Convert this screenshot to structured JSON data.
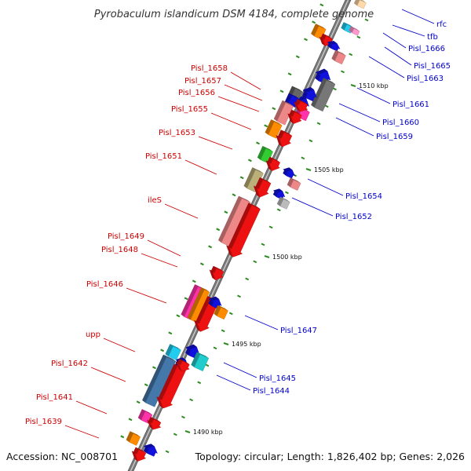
{
  "title": "Pyrobaculum islandicum DSM 4184, complete genome",
  "footer": {
    "accession": "Accession: NC_008701",
    "topology": "Topology: circular; Length: 1,826,402 bp; Genes: 2,026"
  },
  "colors": {
    "red_label": "#cc0000",
    "blue_label": "#0000cc",
    "backbone": "#777777",
    "tick": "#2e8b22"
  },
  "kbp_labels": [
    "1510 kbp",
    "1505 kbp",
    "1500 kbp",
    "1495 kbp",
    "1490 kbp"
  ],
  "labels_left": [
    "Pisl_1658",
    "Pisl_1657",
    "Pisl_1656",
    "Pisl_1655",
    "Pisl_1653",
    "Pisl_1651",
    "ileS",
    "Pisl_1649",
    "Pisl_1648",
    "Pisl_1646",
    "upp",
    "Pisl_1642",
    "Pisl_1641",
    "Pisl_1639"
  ],
  "labels_right": [
    "rfc",
    "tfb",
    "Pisl_1666",
    "Pisl_1665",
    "Pisl_1663",
    "Pisl_1661",
    "Pisl_1660",
    "Pisl_1659",
    "Pisl_1654",
    "Pisl_1652",
    "Pisl_1647",
    "Pisl_1645",
    "Pisl_1644"
  ]
}
